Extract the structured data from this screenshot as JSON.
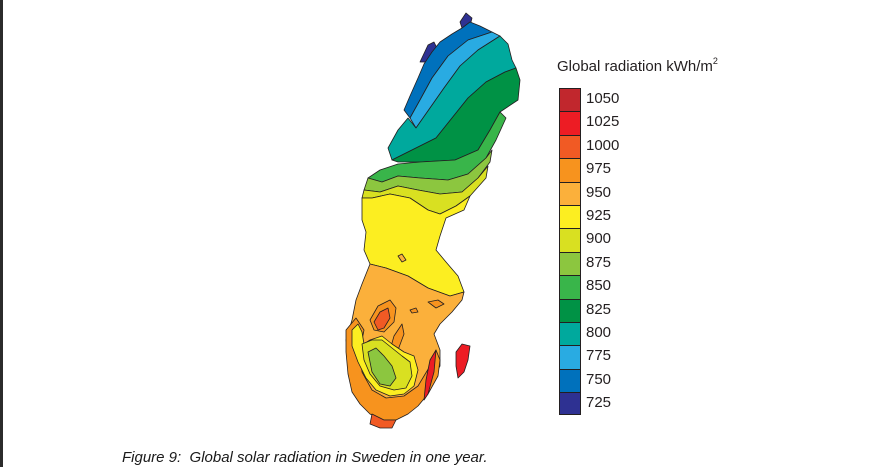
{
  "legend": {
    "title": "Global radiation kWh/m",
    "title_superscript": "2",
    "items": [
      {
        "label": "1050",
        "color": "#c1272d"
      },
      {
        "label": "1025",
        "color": "#ed1c24"
      },
      {
        "label": "1000",
        "color": "#f15a24"
      },
      {
        "label": "975",
        "color": "#f7931e"
      },
      {
        "label": "950",
        "color": "#fbb03b"
      },
      {
        "label": "925",
        "color": "#fcee21"
      },
      {
        "label": "900",
        "color": "#d9e021"
      },
      {
        "label": "875",
        "color": "#8cc63f"
      },
      {
        "label": "850",
        "color": "#39b54a"
      },
      {
        "label": "825",
        "color": "#009245"
      },
      {
        "label": "800",
        "color": "#00a99d"
      },
      {
        "label": "775",
        "color": "#29abe2"
      },
      {
        "label": "750",
        "color": "#0071bc"
      },
      {
        "label": "725",
        "color": "#2e3192"
      }
    ]
  },
  "map": {
    "region": "Sweden",
    "description": "Contour map of annual global solar radiation; lowest (725-775) in the northern mountains, increasing southward, highest (1025-1050) on Gotland/Öland"
  },
  "caption": "Figure 9:  Global solar radiation in Sweden in one year."
}
